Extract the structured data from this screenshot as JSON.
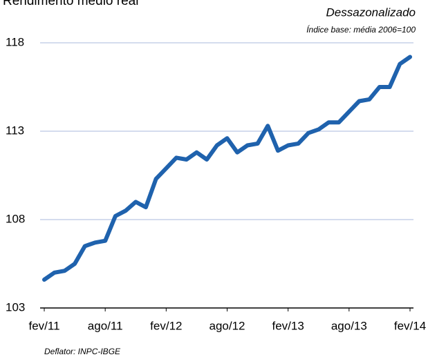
{
  "chart_data": {
    "type": "line",
    "title": "Rendimento médio real",
    "subtitle": "Dessazonalizado",
    "note": "Índice base: média 2006=100",
    "footnote": "Deflator: INPC-IBGE",
    "categories": [
      "fev/11",
      null,
      null,
      null,
      null,
      null,
      "ago/11",
      null,
      null,
      null,
      null,
      null,
      "fev/12",
      null,
      null,
      null,
      null,
      null,
      "ago/12",
      null,
      null,
      null,
      null,
      null,
      "fev/13",
      null,
      null,
      null,
      null,
      null,
      "ago/13",
      null,
      null,
      null,
      null,
      null,
      "fev/14"
    ],
    "series": [
      {
        "name": "Rendimento médio real",
        "color": "#1f62ad",
        "values": [
          104.6,
          105.0,
          105.1,
          105.5,
          106.5,
          106.7,
          106.8,
          108.2,
          108.5,
          109.0,
          108.7,
          110.3,
          110.9,
          111.5,
          111.4,
          111.8,
          111.4,
          112.2,
          112.6,
          111.8,
          112.2,
          112.3,
          113.3,
          111.9,
          112.2,
          112.3,
          112.9,
          113.1,
          113.5,
          113.5,
          114.1,
          114.7,
          114.8,
          115.5,
          115.5,
          116.8,
          117.2
        ]
      }
    ],
    "ylim": [
      103,
      118
    ],
    "yticks": [
      103,
      108,
      113,
      118
    ],
    "grid": true
  }
}
